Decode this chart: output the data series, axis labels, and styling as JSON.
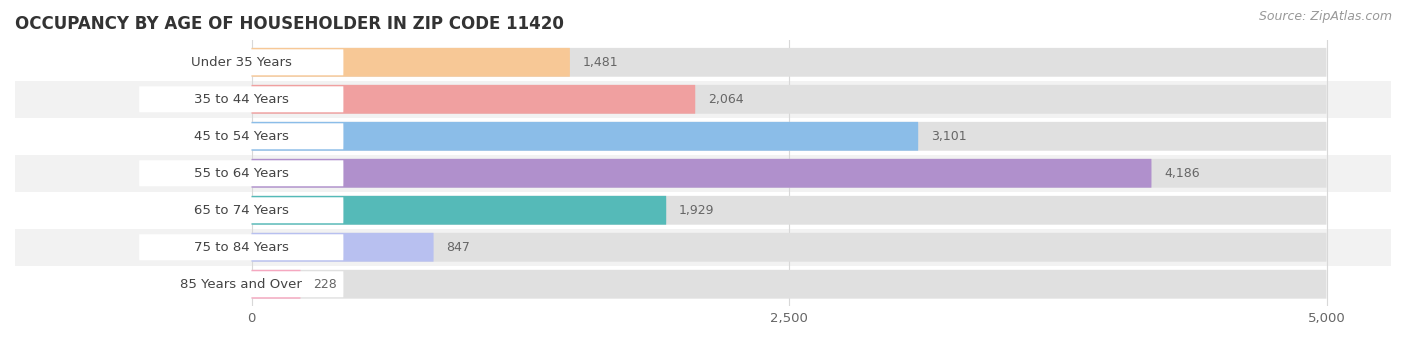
{
  "title": "OCCUPANCY BY AGE OF HOUSEHOLDER IN ZIP CODE 11420",
  "source": "Source: ZipAtlas.com",
  "categories": [
    "Under 35 Years",
    "35 to 44 Years",
    "45 to 54 Years",
    "55 to 64 Years",
    "65 to 74 Years",
    "75 to 84 Years",
    "85 Years and Over"
  ],
  "values": [
    1481,
    2064,
    3101,
    4186,
    1929,
    847,
    228
  ],
  "bar_colors": [
    "#f7c896",
    "#f0a0a0",
    "#8bbde8",
    "#b090cc",
    "#55bab8",
    "#b8c0f0",
    "#f5a8c0"
  ],
  "row_bg_colors": [
    "#ffffff",
    "#f2f2f2",
    "#ffffff",
    "#f2f2f2",
    "#ffffff",
    "#f2f2f2",
    "#ffffff"
  ],
  "xlim": [
    0,
    5000
  ],
  "xticks": [
    0,
    2500,
    5000
  ],
  "chart_bg": "#ffffff",
  "outer_bg": "#ffffff",
  "title_fontsize": 12,
  "label_fontsize": 9.5,
  "value_fontsize": 9,
  "source_fontsize": 9,
  "grid_color": "#d8d8d8"
}
